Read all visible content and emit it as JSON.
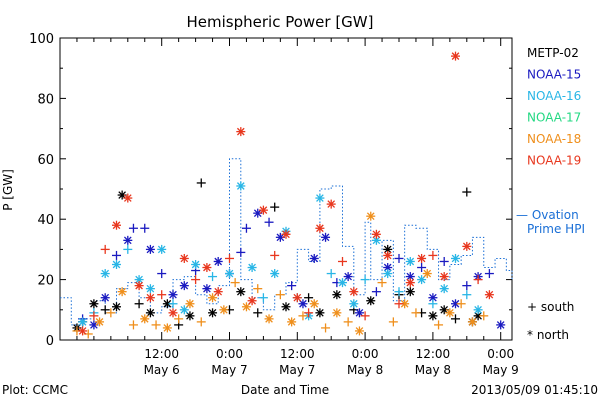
{
  "chart_data": {
    "type": "scatter",
    "title": "Hemispheric Power [GW]",
    "ylabel": "P [GW]",
    "xlabel": "Date and Time",
    "ylim": [
      0,
      100
    ],
    "yticks": [
      0,
      20,
      40,
      60,
      80,
      100
    ],
    "xlim": [
      0,
      80
    ],
    "xunit": "hours since May 5 18:00 (shown as date/time ticks)",
    "xticks": [
      {
        "x": 18,
        "time": "12:00",
        "date": "May 6"
      },
      {
        "x": 30,
        "time": "0:00",
        "date": "May 7"
      },
      {
        "x": 42,
        "time": "12:00",
        "date": "May 7"
      },
      {
        "x": 54,
        "time": "0:00",
        "date": "May 8"
      },
      {
        "x": 66,
        "time": "12:00",
        "date": "May 8"
      },
      {
        "x": 78,
        "time": "0:00",
        "date": "May 9"
      }
    ],
    "grid": false,
    "legend_position": "right",
    "marker_legend": [
      {
        "symbol": "+",
        "label": "south"
      },
      {
        "symbol": "*",
        "label": "north"
      }
    ],
    "series": [
      {
        "name": "METP-02",
        "color": "#000000",
        "points": [
          [
            3,
            4,
            "*"
          ],
          [
            4,
            6,
            "+"
          ],
          [
            6,
            12,
            "*"
          ],
          [
            8,
            10,
            "+"
          ],
          [
            10,
            11,
            "*"
          ],
          [
            11,
            48,
            "*"
          ],
          [
            14,
            12,
            "+"
          ],
          [
            16,
            9,
            "*"
          ],
          [
            19,
            12,
            "*"
          ],
          [
            21,
            5,
            "+"
          ],
          [
            23,
            8,
            "*"
          ],
          [
            25,
            52,
            "+"
          ],
          [
            27,
            9,
            "*"
          ],
          [
            30,
            10,
            "+"
          ],
          [
            32,
            16,
            "*"
          ],
          [
            35,
            9,
            "+"
          ],
          [
            38,
            44,
            "+"
          ],
          [
            40,
            11,
            "*"
          ],
          [
            44,
            14,
            "+"
          ],
          [
            46,
            9,
            "*"
          ],
          [
            49,
            15,
            "*"
          ],
          [
            52,
            10,
            "+"
          ],
          [
            55,
            13,
            "*"
          ],
          [
            58,
            30,
            "*"
          ],
          [
            60,
            15,
            "+"
          ],
          [
            62,
            16,
            "*"
          ],
          [
            64,
            9,
            "+"
          ],
          [
            66,
            8,
            "*"
          ],
          [
            68,
            10,
            "*"
          ],
          [
            70,
            7,
            "+"
          ],
          [
            72,
            49,
            "+"
          ],
          [
            73,
            6,
            "*"
          ],
          [
            74,
            8,
            "*"
          ]
        ]
      },
      {
        "name": "NOAA-15",
        "color": "#1a1ac0",
        "points": [
          [
            4,
            7,
            "+"
          ],
          [
            6,
            5,
            "*"
          ],
          [
            8,
            14,
            "*"
          ],
          [
            10,
            28,
            "+"
          ],
          [
            12,
            33,
            "*"
          ],
          [
            13,
            37,
            "+"
          ],
          [
            15,
            37,
            "+"
          ],
          [
            16,
            30,
            "*"
          ],
          [
            18,
            22,
            "+"
          ],
          [
            20,
            15,
            "*"
          ],
          [
            22,
            18,
            "*"
          ],
          [
            24,
            23,
            "+"
          ],
          [
            26,
            17,
            "*"
          ],
          [
            28,
            26,
            "*"
          ],
          [
            30,
            22,
            "+"
          ],
          [
            32,
            29,
            "+"
          ],
          [
            33,
            37,
            "+"
          ],
          [
            35,
            42,
            "*"
          ],
          [
            37,
            39,
            "+"
          ],
          [
            39,
            34,
            "*"
          ],
          [
            41,
            18,
            "+"
          ],
          [
            43,
            12,
            "*"
          ],
          [
            45,
            27,
            "*"
          ],
          [
            47,
            34,
            "*"
          ],
          [
            49,
            19,
            "+"
          ],
          [
            51,
            21,
            "*"
          ],
          [
            53,
            9,
            "*"
          ],
          [
            56,
            16,
            "+"
          ],
          [
            58,
            24,
            "*"
          ],
          [
            60,
            27,
            "+"
          ],
          [
            62,
            21,
            "*"
          ],
          [
            64,
            24,
            "+"
          ],
          [
            66,
            14,
            "*"
          ],
          [
            68,
            26,
            "+"
          ],
          [
            70,
            12,
            "*"
          ],
          [
            72,
            18,
            "+"
          ],
          [
            74,
            21,
            "*"
          ],
          [
            76,
            22,
            "+"
          ],
          [
            78,
            5,
            "*"
          ]
        ]
      },
      {
        "name": "NOAA-16",
        "color": "#29b6e6",
        "points": [
          [
            4,
            6,
            "*"
          ],
          [
            6,
            9,
            "+"
          ],
          [
            8,
            22,
            "*"
          ],
          [
            10,
            25,
            "*"
          ],
          [
            12,
            30,
            "+"
          ],
          [
            14,
            20,
            "*"
          ],
          [
            16,
            17,
            "*"
          ],
          [
            18,
            30,
            "*"
          ],
          [
            20,
            12,
            "+"
          ],
          [
            22,
            10,
            "*"
          ],
          [
            24,
            25,
            "*"
          ],
          [
            27,
            21,
            "+"
          ],
          [
            30,
            22,
            "*"
          ],
          [
            32,
            51,
            "*"
          ],
          [
            34,
            24,
            "*"
          ],
          [
            36,
            14,
            "+"
          ],
          [
            38,
            22,
            "*"
          ],
          [
            40,
            36,
            "*"
          ],
          [
            42,
            14,
            "+"
          ],
          [
            44,
            8,
            "*"
          ],
          [
            46,
            47,
            "*"
          ],
          [
            48,
            22,
            "+"
          ],
          [
            50,
            19,
            "*"
          ],
          [
            52,
            12,
            "*"
          ],
          [
            54,
            20,
            "+"
          ],
          [
            56,
            33,
            "*"
          ],
          [
            58,
            22,
            "*"
          ],
          [
            60,
            16,
            "+"
          ],
          [
            62,
            26,
            "*"
          ],
          [
            64,
            20,
            "*"
          ],
          [
            66,
            12,
            "+"
          ],
          [
            68,
            17,
            "*"
          ],
          [
            70,
            27,
            "*"
          ],
          [
            72,
            15,
            "+"
          ],
          [
            74,
            10,
            "*"
          ]
        ]
      },
      {
        "name": "NOAA-17",
        "color": "#22d882",
        "points": []
      },
      {
        "name": "NOAA-18",
        "color": "#ef8f1c",
        "points": [
          [
            3,
            3,
            "+"
          ],
          [
            5,
            2,
            "+"
          ],
          [
            7,
            6,
            "*"
          ],
          [
            9,
            9,
            "+"
          ],
          [
            11,
            16,
            "*"
          ],
          [
            13,
            5,
            "+"
          ],
          [
            15,
            7,
            "*"
          ],
          [
            17,
            5,
            "+"
          ],
          [
            19,
            4,
            "*"
          ],
          [
            21,
            7,
            "+"
          ],
          [
            23,
            12,
            "*"
          ],
          [
            25,
            6,
            "+"
          ],
          [
            27,
            14,
            "*"
          ],
          [
            29,
            10,
            "*"
          ],
          [
            31,
            19,
            "+"
          ],
          [
            33,
            11,
            "*"
          ],
          [
            35,
            17,
            "+"
          ],
          [
            37,
            7,
            "*"
          ],
          [
            39,
            15,
            "+"
          ],
          [
            41,
            6,
            "*"
          ],
          [
            43,
            8,
            "+"
          ],
          [
            45,
            12,
            "*"
          ],
          [
            47,
            4,
            "+"
          ],
          [
            49,
            9,
            "*"
          ],
          [
            51,
            6,
            "+"
          ],
          [
            53,
            3,
            "*"
          ],
          [
            55,
            41,
            "*"
          ],
          [
            57,
            19,
            "+"
          ],
          [
            59,
            6,
            "+"
          ],
          [
            61,
            12,
            "*"
          ],
          [
            63,
            9,
            "+"
          ],
          [
            65,
            22,
            "*"
          ],
          [
            67,
            5,
            "+"
          ],
          [
            69,
            9,
            "*"
          ],
          [
            71,
            12,
            "+"
          ],
          [
            73,
            6,
            "*"
          ],
          [
            75,
            8,
            "+"
          ]
        ]
      },
      {
        "name": "NOAA-19",
        "color": "#e8371e",
        "points": [
          [
            4,
            3,
            "*"
          ],
          [
            6,
            8,
            "+"
          ],
          [
            8,
            30,
            "+"
          ],
          [
            10,
            38,
            "*"
          ],
          [
            12,
            47,
            "*"
          ],
          [
            14,
            18,
            "*"
          ],
          [
            16,
            14,
            "*"
          ],
          [
            18,
            15,
            "+"
          ],
          [
            20,
            9,
            "*"
          ],
          [
            22,
            27,
            "*"
          ],
          [
            24,
            20,
            "+"
          ],
          [
            26,
            24,
            "*"
          ],
          [
            28,
            16,
            "*"
          ],
          [
            30,
            27,
            "+"
          ],
          [
            32,
            69,
            "*"
          ],
          [
            34,
            13,
            "*"
          ],
          [
            36,
            43,
            "*"
          ],
          [
            38,
            28,
            "+"
          ],
          [
            40,
            35,
            "*"
          ],
          [
            42,
            14,
            "*"
          ],
          [
            44,
            9,
            "+"
          ],
          [
            46,
            37,
            "*"
          ],
          [
            48,
            45,
            "*"
          ],
          [
            50,
            26,
            "+"
          ],
          [
            52,
            16,
            "*"
          ],
          [
            54,
            8,
            "+"
          ],
          [
            56,
            35,
            "*"
          ],
          [
            58,
            28,
            "*"
          ],
          [
            60,
            12,
            "+"
          ],
          [
            62,
            19,
            "*"
          ],
          [
            64,
            27,
            "*"
          ],
          [
            66,
            28,
            "+"
          ],
          [
            68,
            21,
            "*"
          ],
          [
            70,
            94,
            "*"
          ],
          [
            72,
            31,
            "*"
          ],
          [
            74,
            20,
            "+"
          ],
          [
            76,
            15,
            "*"
          ]
        ]
      }
    ],
    "model_series": {
      "name": "Ovation Prime HPI",
      "legend_label": "— Ovation\nPrime HPI",
      "color": "#1a6fd6",
      "style": "dotted-step",
      "steps": [
        [
          0,
          14
        ],
        [
          2,
          5
        ],
        [
          4,
          7
        ],
        [
          6,
          13
        ],
        [
          8,
          9
        ],
        [
          10,
          17
        ],
        [
          12,
          19
        ],
        [
          14,
          14
        ],
        [
          16,
          9
        ],
        [
          18,
          11
        ],
        [
          20,
          20
        ],
        [
          22,
          21
        ],
        [
          24,
          15
        ],
        [
          26,
          12
        ],
        [
          28,
          18
        ],
        [
          30,
          60
        ],
        [
          32,
          20
        ],
        [
          34,
          14
        ],
        [
          36,
          10
        ],
        [
          38,
          15
        ],
        [
          40,
          19
        ],
        [
          42,
          30
        ],
        [
          44,
          26
        ],
        [
          46,
          50
        ],
        [
          48,
          51
        ],
        [
          50,
          31
        ],
        [
          52,
          15
        ],
        [
          54,
          39
        ],
        [
          55,
          20
        ],
        [
          57,
          33
        ],
        [
          59,
          13
        ],
        [
          61,
          38
        ],
        [
          63,
          37
        ],
        [
          65,
          30
        ],
        [
          67,
          20
        ],
        [
          69,
          25
        ],
        [
          71,
          28
        ],
        [
          73,
          34
        ],
        [
          75,
          24
        ],
        [
          77,
          27
        ],
        [
          79,
          23
        ],
        [
          80,
          20
        ]
      ]
    },
    "footer_left": "Plot: CCMC",
    "footer_right": "2013/05/09 01:45:10"
  }
}
